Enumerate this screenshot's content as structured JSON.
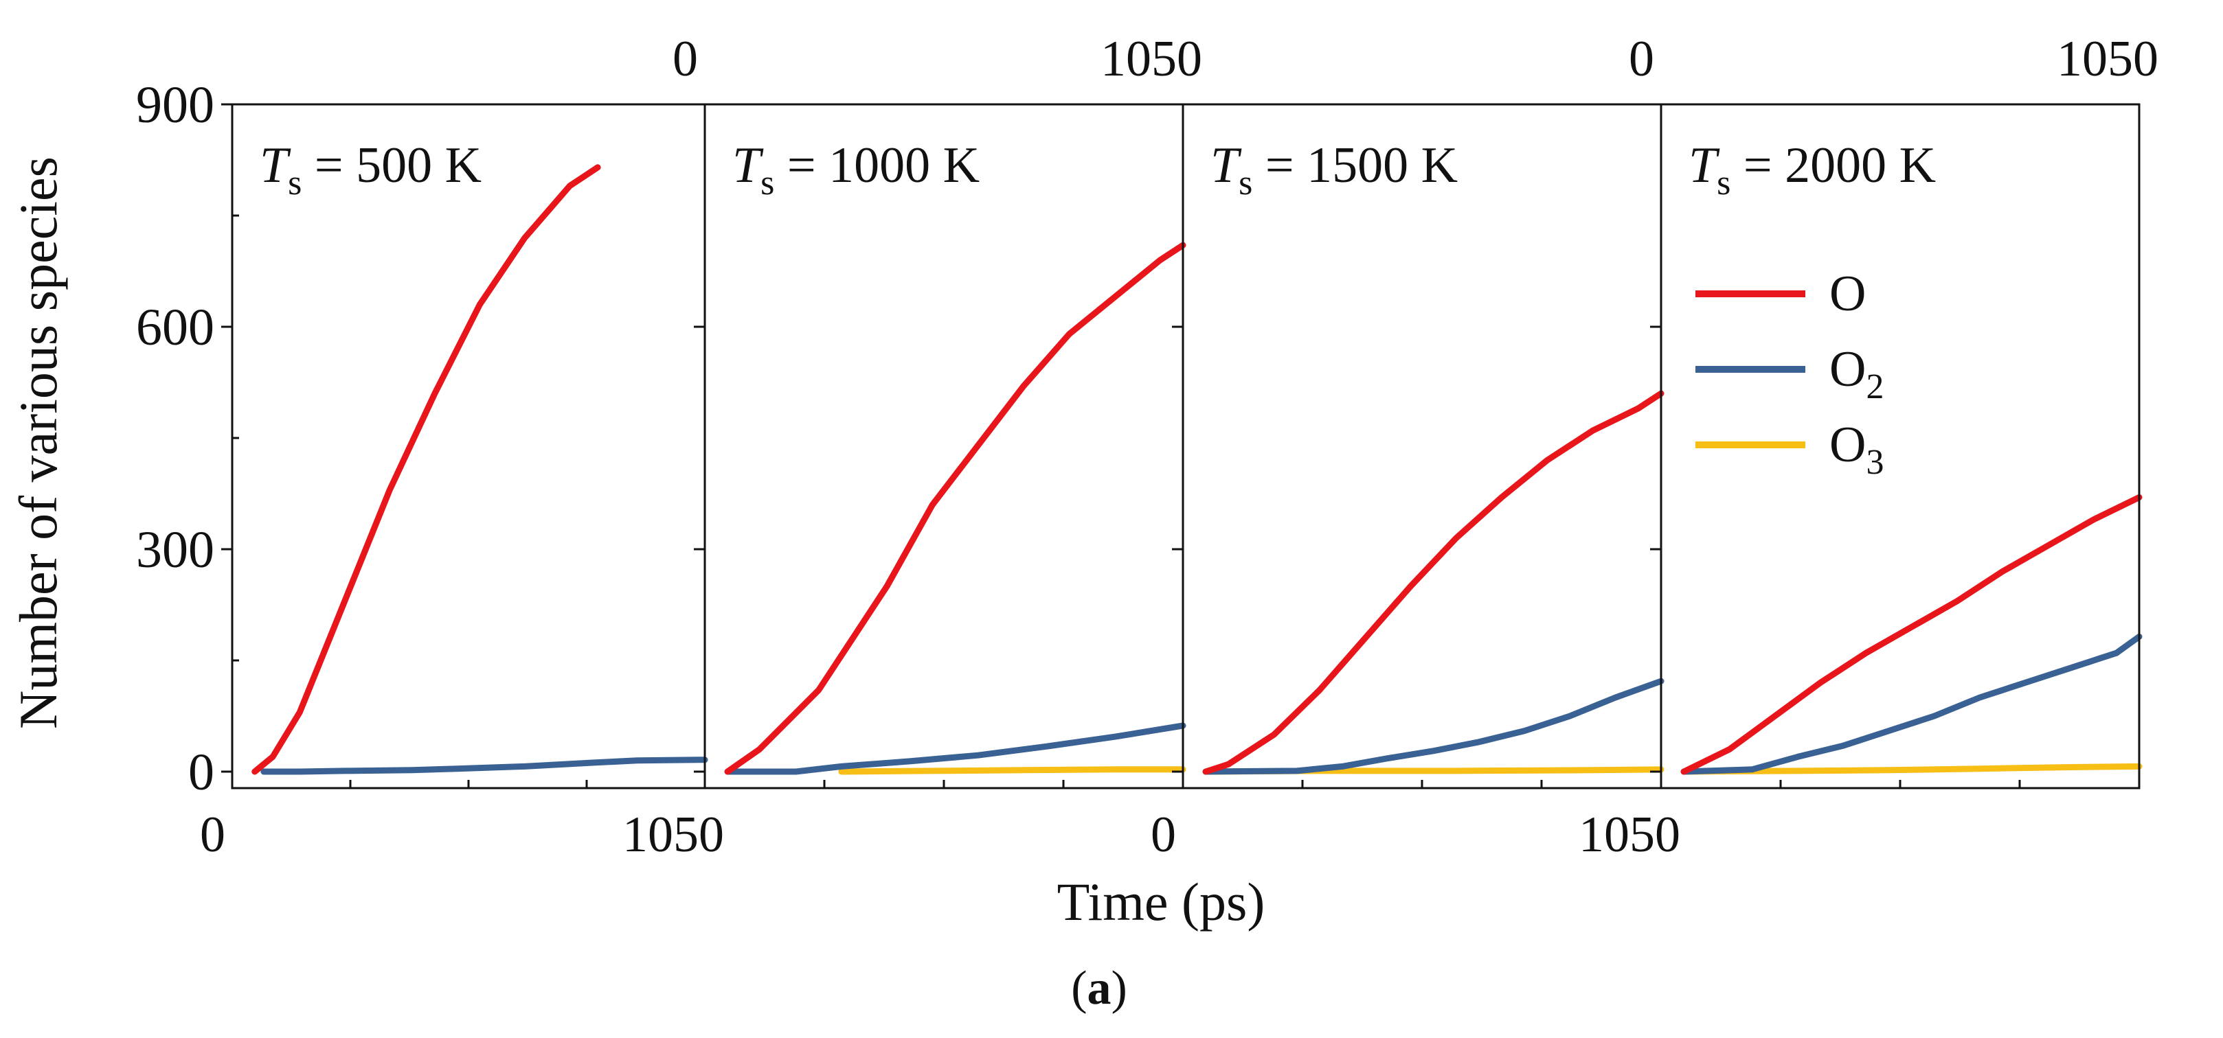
{
  "chart_data": {
    "type": "line",
    "panel_label": "a",
    "ylabel": "Number of various species",
    "xlabel": "Time (ps)",
    "ylim": [
      0,
      900
    ],
    "yticks": [
      0,
      300,
      600,
      900
    ],
    "xlim": [
      0,
      1050
    ],
    "x_tick_labels": [
      "0",
      "1050"
    ],
    "legend": {
      "placement": "right-middle of last panel",
      "entries": [
        {
          "label": "O",
          "color": "#e8151b"
        },
        {
          "label": "O2",
          "color": "#3a6193"
        },
        {
          "label": "O3",
          "color": "#f7be16"
        }
      ]
    },
    "panels": [
      {
        "title_var": "T",
        "title_sub": "s",
        "title_value": " = 500 K",
        "series": [
          {
            "name": "O",
            "color": "#e8151b",
            "points": [
              [
                50,
                0
              ],
              [
                90,
                20
              ],
              [
                150,
                80
              ],
              [
                250,
                230
              ],
              [
                350,
                380
              ],
              [
                450,
                510
              ],
              [
                550,
                630
              ],
              [
                650,
                720
              ],
              [
                750,
                790
              ],
              [
                812,
                815
              ]
            ]
          },
          {
            "name": "O2",
            "color": "#3a6193",
            "points": [
              [
                70,
                0
              ],
              [
                150,
                0
              ],
              [
                250,
                1
              ],
              [
                400,
                2
              ],
              [
                500,
                4
              ],
              [
                650,
                7
              ],
              [
                800,
                12
              ],
              [
                900,
                15
              ],
              [
                1050,
                16
              ]
            ]
          }
        ]
      },
      {
        "title_var": "T",
        "title_sub": "s",
        "title_value": " = 1000 K",
        "series": [
          {
            "name": "O",
            "color": "#e8151b",
            "points": [
              [
                50,
                0
              ],
              [
                120,
                30
              ],
              [
                250,
                110
              ],
              [
                400,
                250
              ],
              [
                500,
                360
              ],
              [
                600,
                440
              ],
              [
                700,
                520
              ],
              [
                800,
                590
              ],
              [
                900,
                640
              ],
              [
                1000,
                690
              ],
              [
                1050,
                710
              ]
            ]
          },
          {
            "name": "O2",
            "color": "#3a6193",
            "points": [
              [
                50,
                0
              ],
              [
                200,
                0
              ],
              [
                300,
                7
              ],
              [
                450,
                14
              ],
              [
                600,
                22
              ],
              [
                750,
                34
              ],
              [
                900,
                47
              ],
              [
                1050,
                62
              ]
            ]
          },
          {
            "name": "O3",
            "color": "#f7be16",
            "points": [
              [
                300,
                0
              ],
              [
                500,
                1
              ],
              [
                700,
                2
              ],
              [
                900,
                3
              ],
              [
                1050,
                3
              ]
            ]
          }
        ]
      },
      {
        "title_var": "T",
        "title_sub": "s",
        "title_value": " = 1500 K",
        "series": [
          {
            "name": "O",
            "color": "#e8151b",
            "points": [
              [
                50,
                0
              ],
              [
                100,
                10
              ],
              [
                200,
                50
              ],
              [
                300,
                110
              ],
              [
                400,
                180
              ],
              [
                500,
                250
              ],
              [
                600,
                315
              ],
              [
                700,
                370
              ],
              [
                800,
                420
              ],
              [
                900,
                460
              ],
              [
                1000,
                490
              ],
              [
                1050,
                510
              ]
            ]
          },
          {
            "name": "O2",
            "color": "#3a6193",
            "points": [
              [
                50,
                0
              ],
              [
                250,
                1
              ],
              [
                350,
                7
              ],
              [
                450,
                18
              ],
              [
                550,
                28
              ],
              [
                650,
                40
              ],
              [
                750,
                55
              ],
              [
                850,
                75
              ],
              [
                950,
                100
              ],
              [
                1050,
                122
              ]
            ]
          },
          {
            "name": "O3",
            "color": "#f7be16",
            "points": [
              [
                50,
                0
              ],
              [
                300,
                1
              ],
              [
                600,
                1
              ],
              [
                900,
                2
              ],
              [
                1050,
                3
              ]
            ]
          }
        ]
      },
      {
        "title_var": "T",
        "title_sub": "s",
        "title_value": " = 2000 K",
        "series": [
          {
            "name": "O",
            "color": "#e8151b",
            "points": [
              [
                50,
                0
              ],
              [
                150,
                30
              ],
              [
                250,
                75
              ],
              [
                350,
                120
              ],
              [
                450,
                160
              ],
              [
                550,
                195
              ],
              [
                650,
                230
              ],
              [
                750,
                270
              ],
              [
                850,
                305
              ],
              [
                950,
                340
              ],
              [
                1050,
                370
              ]
            ]
          },
          {
            "name": "O2",
            "color": "#3a6193",
            "points": [
              [
                50,
                0
              ],
              [
                200,
                3
              ],
              [
                300,
                20
              ],
              [
                400,
                35
              ],
              [
                500,
                55
              ],
              [
                600,
                75
              ],
              [
                700,
                100
              ],
              [
                800,
                120
              ],
              [
                900,
                140
              ],
              [
                1000,
                160
              ],
              [
                1050,
                182
              ]
            ]
          },
          {
            "name": "O3",
            "color": "#f7be16",
            "points": [
              [
                50,
                0
              ],
              [
                300,
                1
              ],
              [
                500,
                2
              ],
              [
                700,
                4
              ],
              [
                900,
                6
              ],
              [
                1050,
                7
              ]
            ]
          }
        ]
      }
    ]
  }
}
